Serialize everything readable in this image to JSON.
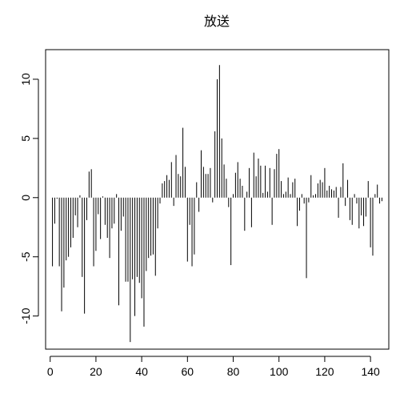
{
  "chart_data": {
    "type": "bar",
    "title": "放送",
    "xlabel": "",
    "ylabel": "",
    "xlim": [
      -2,
      148
    ],
    "ylim": [
      -12.8,
      12.5
    ],
    "x_ticks": [
      0,
      20,
      40,
      60,
      80,
      100,
      120,
      140
    ],
    "y_ticks": [
      -10,
      -5,
      0,
      5,
      10
    ],
    "grid": false,
    "legend": "none",
    "line_color": "#000000",
    "x": [
      1,
      2,
      3,
      4,
      5,
      6,
      7,
      8,
      9,
      10,
      11,
      12,
      13,
      14,
      15,
      16,
      17,
      18,
      19,
      20,
      21,
      22,
      23,
      24,
      25,
      26,
      27,
      28,
      29,
      30,
      31,
      32,
      33,
      34,
      35,
      36,
      37,
      38,
      39,
      40,
      41,
      42,
      43,
      44,
      45,
      46,
      47,
      48,
      49,
      50,
      51,
      52,
      53,
      54,
      55,
      56,
      57,
      58,
      59,
      60,
      61,
      62,
      63,
      64,
      65,
      66,
      67,
      68,
      69,
      70,
      71,
      72,
      73,
      74,
      75,
      76,
      77,
      78,
      79,
      80,
      81,
      82,
      83,
      84,
      85,
      86,
      87,
      88,
      89,
      90,
      91,
      92,
      93,
      94,
      95,
      96,
      97,
      98,
      99,
      100,
      101,
      102,
      103,
      104,
      105,
      106,
      107,
      108,
      109,
      110,
      111,
      112,
      113,
      114,
      115,
      116,
      117,
      118,
      119,
      120,
      121,
      122,
      123,
      124,
      125,
      126,
      127,
      128,
      129,
      130,
      131,
      132,
      133,
      134,
      135,
      136,
      137,
      138,
      139,
      140,
      141,
      142,
      143,
      144,
      145
    ],
    "values": [
      -5.8,
      -2.2,
      -0.1,
      -5.8,
      -9.6,
      -7.6,
      -5.3,
      -5.0,
      -4.2,
      -3.4,
      -1.5,
      -2.5,
      0.2,
      -6.7,
      -9.8,
      -1.9,
      2.2,
      2.4,
      -5.8,
      -4.5,
      -1.4,
      -3.5,
      0.1,
      -2.3,
      -3.4,
      -5.1,
      -2.6,
      -2.2,
      0.3,
      -9.1,
      -2.8,
      -1.6,
      -7.1,
      -7.1,
      -12.2,
      -6.9,
      -10.0,
      -6.7,
      -7.2,
      -8.5,
      -10.9,
      -6.2,
      -5.1,
      -4.9,
      -4.8,
      -6.6,
      -2.6,
      -0.5,
      1.2,
      1.4,
      1.9,
      1.5,
      3.0,
      -0.7,
      3.6,
      2.0,
      1.8,
      5.9,
      2.6,
      -5.4,
      -2.3,
      -5.8,
      -4.8,
      1.3,
      -1.2,
      4.0,
      2.6,
      2.0,
      2.0,
      2.5,
      -0.4,
      5.6,
      10.0,
      11.2,
      5.0,
      2.8,
      1.6,
      -0.8,
      -5.7,
      0.3,
      2.1,
      3.0,
      1.6,
      1.0,
      -2.8,
      0.5,
      2.5,
      -2.5,
      3.8,
      1.8,
      3.3,
      2.7,
      0.4,
      2.7,
      0.5,
      2.5,
      -2.3,
      2.4,
      3.7,
      4.1,
      1.4,
      0.3,
      0.5,
      1.7,
      0.3,
      1.3,
      1.6,
      -2.4,
      -1.1,
      0.3,
      -0.5,
      -6.8,
      -0.4,
      1.9,
      0.2,
      0.3,
      1.2,
      1.5,
      1.3,
      2.5,
      0.6,
      1.0,
      0.7,
      0.6,
      0.9,
      -1.7,
      0.9,
      2.9,
      -0.7,
      1.5,
      -1.9,
      -2.3,
      0.3,
      -0.5,
      -2.6,
      -1.5,
      -2.4,
      -1.6,
      1.4,
      -4.2,
      -4.9,
      0.3,
      1.1,
      -0.5,
      -0.3
    ]
  }
}
